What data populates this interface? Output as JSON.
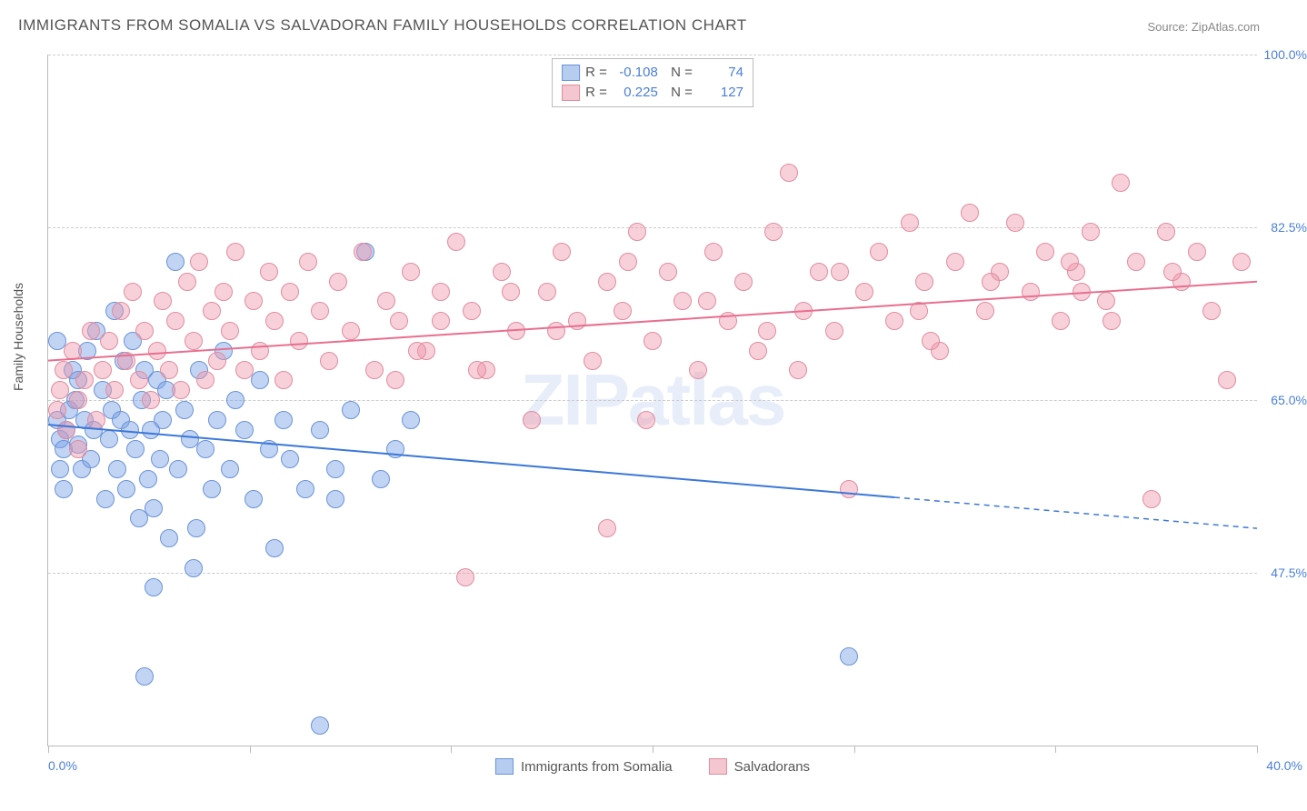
{
  "title": "IMMIGRANTS FROM SOMALIA VS SALVADORAN FAMILY HOUSEHOLDS CORRELATION CHART",
  "source": "Source: ZipAtlas.com",
  "watermark": "ZIPatlas",
  "ylabel": "Family Households",
  "chart": {
    "type": "scatter",
    "xlim": [
      0,
      40
    ],
    "ylim": [
      30,
      100
    ],
    "yticks": [
      47.5,
      65.0,
      82.5,
      100.0
    ],
    "ytick_labels": [
      "47.5%",
      "65.0%",
      "82.5%",
      "100.0%"
    ],
    "xticks": [
      0,
      6.67,
      13.33,
      20,
      26.67,
      33.33,
      40
    ],
    "xmin_label": "0.0%",
    "xmax_label": "40.0%",
    "background_color": "#ffffff",
    "grid_color": "#cccccc",
    "axis_color": "#bbbbbb",
    "tick_label_color": "#4a7fd8",
    "point_radius": 9,
    "point_opacity": 0.55,
    "series": [
      {
        "name": "Immigrants from Somalia",
        "color_fill": "rgba(120,160,230,0.45)",
        "color_stroke": "#6a93d8",
        "legend_swatch_fill": "#b6cdf0",
        "legend_swatch_stroke": "#6a93d8",
        "R": "-0.108",
        "N": "74",
        "trend": {
          "x1": 0,
          "y1": 62.5,
          "x2": 40,
          "y2": 52,
          "solid_until_x": 28,
          "color": "#3b78d8",
          "width": 2
        },
        "points": [
          [
            0.3,
            63
          ],
          [
            0.4,
            61
          ],
          [
            0.5,
            60
          ],
          [
            0.6,
            62
          ],
          [
            0.7,
            64
          ],
          [
            0.8,
            68
          ],
          [
            0.9,
            65
          ],
          [
            1.0,
            60.5
          ],
          [
            1.0,
            67
          ],
          [
            1.1,
            58
          ],
          [
            1.2,
            63
          ],
          [
            1.3,
            70
          ],
          [
            1.4,
            59
          ],
          [
            1.5,
            62
          ],
          [
            1.6,
            72
          ],
          [
            1.8,
            66
          ],
          [
            1.9,
            55
          ],
          [
            2.0,
            61
          ],
          [
            2.1,
            64
          ],
          [
            2.2,
            74
          ],
          [
            2.3,
            58
          ],
          [
            2.4,
            63
          ],
          [
            2.5,
            69
          ],
          [
            2.6,
            56
          ],
          [
            2.7,
            62
          ],
          [
            2.8,
            71
          ],
          [
            2.9,
            60
          ],
          [
            3.0,
            53
          ],
          [
            3.1,
            65
          ],
          [
            3.2,
            68
          ],
          [
            3.3,
            57
          ],
          [
            3.4,
            62
          ],
          [
            3.5,
            54
          ],
          [
            3.6,
            67
          ],
          [
            3.7,
            59
          ],
          [
            3.8,
            63
          ],
          [
            3.9,
            66
          ],
          [
            4.0,
            51
          ],
          [
            4.2,
            79
          ],
          [
            4.3,
            58
          ],
          [
            4.5,
            64
          ],
          [
            4.7,
            61
          ],
          [
            4.9,
            52
          ],
          [
            5.0,
            68
          ],
          [
            5.2,
            60
          ],
          [
            5.4,
            56
          ],
          [
            5.6,
            63
          ],
          [
            5.8,
            70
          ],
          [
            6.0,
            58
          ],
          [
            6.2,
            65
          ],
          [
            6.5,
            62
          ],
          [
            6.8,
            55
          ],
          [
            7.0,
            67
          ],
          [
            7.3,
            60
          ],
          [
            7.5,
            50
          ],
          [
            7.8,
            63
          ],
          [
            8.0,
            59
          ],
          [
            8.5,
            56
          ],
          [
            9.0,
            62
          ],
          [
            9.5,
            58
          ],
          [
            10.0,
            64
          ],
          [
            10.5,
            80
          ],
          [
            11.0,
            57
          ],
          [
            11.5,
            60
          ],
          [
            12.0,
            63
          ],
          [
            3.2,
            37
          ],
          [
            3.5,
            46
          ],
          [
            9.0,
            32
          ],
          [
            9.5,
            55
          ],
          [
            4.8,
            48
          ],
          [
            26.5,
            39
          ],
          [
            0.3,
            71
          ],
          [
            0.4,
            58
          ],
          [
            0.5,
            56
          ]
        ]
      },
      {
        "name": "Salvadorans",
        "color_fill": "rgba(240,150,170,0.45)",
        "color_stroke": "#e08da0",
        "legend_swatch_fill": "#f4c6d0",
        "legend_swatch_stroke": "#e08da0",
        "R": "0.225",
        "N": "127",
        "trend": {
          "x1": 0,
          "y1": 69,
          "x2": 40,
          "y2": 77,
          "solid_until_x": 40,
          "color": "#e86f8f",
          "width": 2
        },
        "points": [
          [
            0.3,
            64
          ],
          [
            0.4,
            66
          ],
          [
            0.5,
            68
          ],
          [
            0.6,
            62
          ],
          [
            0.8,
            70
          ],
          [
            1.0,
            65
          ],
          [
            1.2,
            67
          ],
          [
            1.4,
            72
          ],
          [
            1.6,
            63
          ],
          [
            1.8,
            68
          ],
          [
            2.0,
            71
          ],
          [
            2.2,
            66
          ],
          [
            2.4,
            74
          ],
          [
            2.6,
            69
          ],
          [
            2.8,
            76
          ],
          [
            3.0,
            67
          ],
          [
            3.2,
            72
          ],
          [
            3.4,
            65
          ],
          [
            3.6,
            70
          ],
          [
            3.8,
            75
          ],
          [
            4.0,
            68
          ],
          [
            4.2,
            73
          ],
          [
            4.4,
            66
          ],
          [
            4.6,
            77
          ],
          [
            4.8,
            71
          ],
          [
            5.0,
            79
          ],
          [
            5.2,
            67
          ],
          [
            5.4,
            74
          ],
          [
            5.6,
            69
          ],
          [
            5.8,
            76
          ],
          [
            6.0,
            72
          ],
          [
            6.2,
            80
          ],
          [
            6.5,
            68
          ],
          [
            6.8,
            75
          ],
          [
            7.0,
            70
          ],
          [
            7.3,
            78
          ],
          [
            7.5,
            73
          ],
          [
            7.8,
            67
          ],
          [
            8.0,
            76
          ],
          [
            8.3,
            71
          ],
          [
            8.6,
            79
          ],
          [
            9.0,
            74
          ],
          [
            9.3,
            69
          ],
          [
            9.6,
            77
          ],
          [
            10.0,
            72
          ],
          [
            10.4,
            80
          ],
          [
            10.8,
            68
          ],
          [
            11.2,
            75
          ],
          [
            11.6,
            73
          ],
          [
            12.0,
            78
          ],
          [
            12.5,
            70
          ],
          [
            13.0,
            76
          ],
          [
            13.5,
            81
          ],
          [
            14.0,
            74
          ],
          [
            14.5,
            68
          ],
          [
            15.0,
            78
          ],
          [
            15.5,
            72
          ],
          [
            16.0,
            63
          ],
          [
            16.5,
            76
          ],
          [
            17.0,
            80
          ],
          [
            17.5,
            73
          ],
          [
            18.0,
            69
          ],
          [
            18.5,
            77
          ],
          [
            19.0,
            74
          ],
          [
            19.5,
            82
          ],
          [
            20.0,
            71
          ],
          [
            20.5,
            78
          ],
          [
            21.0,
            75
          ],
          [
            21.5,
            68
          ],
          [
            22.0,
            80
          ],
          [
            22.5,
            73
          ],
          [
            23.0,
            77
          ],
          [
            23.5,
            70
          ],
          [
            24.0,
            82
          ],
          [
            24.5,
            88
          ],
          [
            25.0,
            74
          ],
          [
            25.5,
            78
          ],
          [
            26.0,
            72
          ],
          [
            26.5,
            56
          ],
          [
            27.0,
            76
          ],
          [
            27.5,
            80
          ],
          [
            28.0,
            73
          ],
          [
            28.5,
            83
          ],
          [
            29.0,
            77
          ],
          [
            29.5,
            70
          ],
          [
            30.0,
            79
          ],
          [
            30.5,
            84
          ],
          [
            31.0,
            74
          ],
          [
            31.5,
            78
          ],
          [
            32.0,
            83
          ],
          [
            32.5,
            76
          ],
          [
            33.0,
            80
          ],
          [
            33.5,
            73
          ],
          [
            34.0,
            78
          ],
          [
            34.5,
            82
          ],
          [
            35.0,
            75
          ],
          [
            35.5,
            87
          ],
          [
            36.0,
            79
          ],
          [
            36.5,
            55
          ],
          [
            37.0,
            82
          ],
          [
            37.5,
            77
          ],
          [
            38.0,
            80
          ],
          [
            38.5,
            74
          ],
          [
            39.0,
            67
          ],
          [
            39.5,
            79
          ],
          [
            18.5,
            52
          ],
          [
            13.8,
            47
          ],
          [
            11.5,
            67
          ],
          [
            12.2,
            70
          ],
          [
            13.0,
            73
          ],
          [
            14.2,
            68
          ],
          [
            15.3,
            76
          ],
          [
            16.8,
            72
          ],
          [
            19.2,
            79
          ],
          [
            21.8,
            75
          ],
          [
            23.8,
            72
          ],
          [
            26.2,
            78
          ],
          [
            28.8,
            74
          ],
          [
            31.2,
            77
          ],
          [
            33.8,
            79
          ],
          [
            35.2,
            73
          ],
          [
            37.2,
            78
          ],
          [
            19.8,
            63
          ],
          [
            24.8,
            68
          ],
          [
            29.2,
            71
          ],
          [
            34.2,
            76
          ],
          [
            1.0,
            60
          ]
        ]
      }
    ]
  },
  "bottom_legend": [
    {
      "label": "Immigrants from Somalia",
      "fill": "#b6cdf0",
      "stroke": "#6a93d8"
    },
    {
      "label": "Salvadorans",
      "fill": "#f4c6d0",
      "stroke": "#e08da0"
    }
  ]
}
